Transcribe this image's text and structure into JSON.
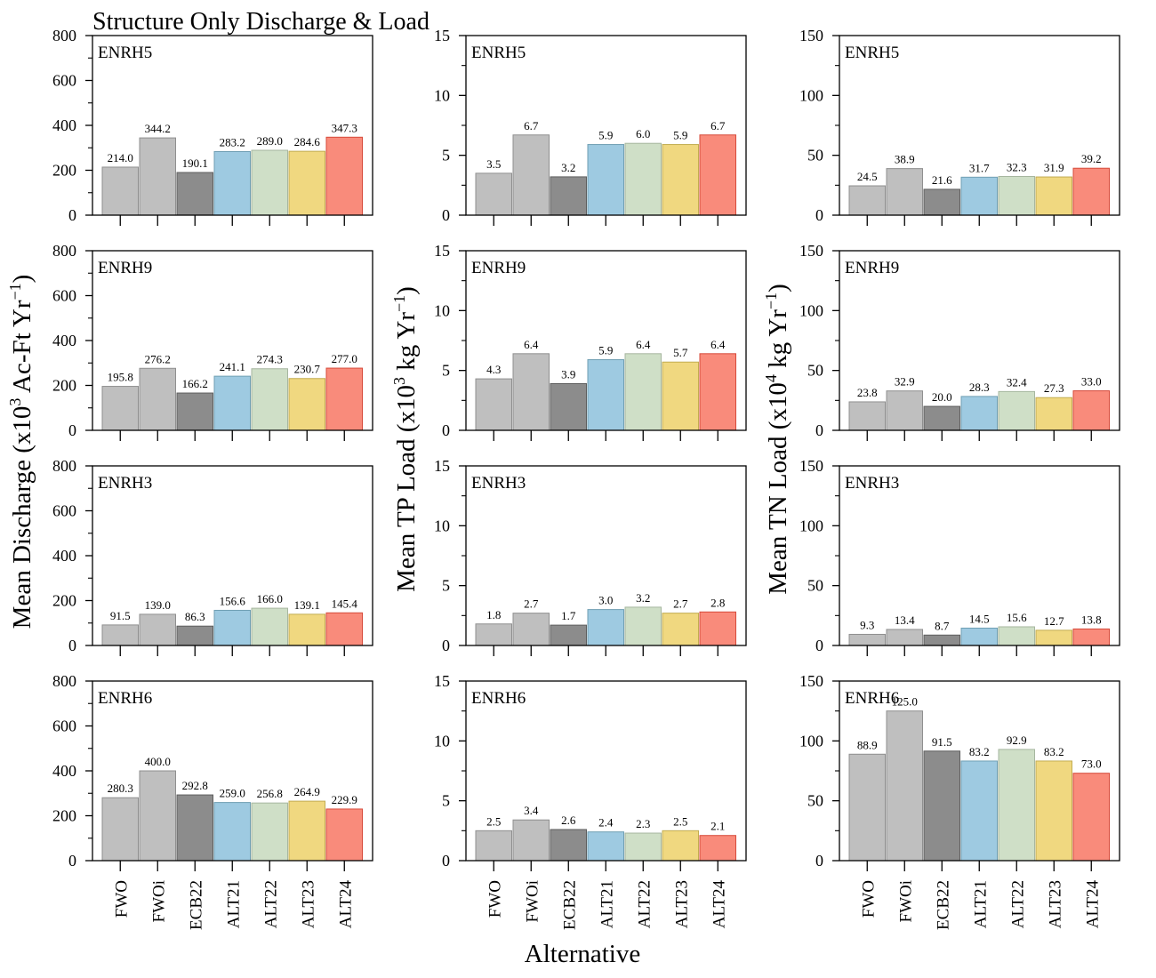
{
  "title": "Structure Only Discharge & Load",
  "xlabel": "Alternative",
  "categories": [
    "FWO",
    "FWOi",
    "ECB22",
    "ALT21",
    "ALT22",
    "ALT23",
    "ALT24"
  ],
  "colors": [
    "#bfbfbf",
    "#bfbfbf",
    "#8c8c8c",
    "#9ecae1",
    "#cfdfc7",
    "#f0d880",
    "#f98b7b"
  ],
  "strokes": [
    "#8f8f8f",
    "#8f8f8f",
    "#5e5e5e",
    "#6f9fb3",
    "#a6b69f",
    "#c2ac50",
    "#d64a3a"
  ],
  "columns": [
    {
      "ylabel_main": "Mean Discharge (x10",
      "ylabel_sup": "3",
      "ylabel_rest": " Ac-Ft Yr",
      "ylabel_sup2": "−1",
      "ylabel_close": ")",
      "ylim": [
        0,
        800
      ],
      "ticks": [
        0,
        200,
        400,
        600,
        800
      ],
      "minor": [
        100,
        300,
        500,
        700
      ]
    },
    {
      "ylabel_main": "Mean TP Load (x10",
      "ylabel_sup": "3",
      "ylabel_rest": " kg Yr",
      "ylabel_sup2": "−1",
      "ylabel_close": ")",
      "ylim": [
        0,
        15
      ],
      "ticks": [
        0,
        5,
        10,
        15
      ],
      "minor": [
        2.5,
        7.5,
        12.5
      ]
    },
    {
      "ylabel_main": "Mean TN Load (x10",
      "ylabel_sup": "4",
      "ylabel_rest": " kg Yr",
      "ylabel_sup2": "−1",
      "ylabel_close": ")",
      "ylim": [
        0,
        150
      ],
      "ticks": [
        0,
        50,
        100,
        150
      ],
      "minor": [
        25,
        75,
        125
      ]
    }
  ],
  "chart_data": [
    {
      "type": "bar",
      "site": "ENRH5",
      "metric": "Mean Discharge",
      "values": [
        214.0,
        344.2,
        190.1,
        283.2,
        289.0,
        284.6,
        347.3
      ],
      "labels": [
        "214.0",
        "344.2",
        "190.1",
        "283.2",
        "289.0",
        "284.6",
        "347.3"
      ]
    },
    {
      "type": "bar",
      "site": "ENRH5",
      "metric": "Mean TP Load",
      "values": [
        3.5,
        6.7,
        3.2,
        5.9,
        6.0,
        5.9,
        6.7
      ],
      "labels": [
        "3.5",
        "6.7",
        "3.2",
        "5.9",
        "6.0",
        "5.9",
        "6.7"
      ]
    },
    {
      "type": "bar",
      "site": "ENRH5",
      "metric": "Mean TN Load",
      "values": [
        24.5,
        38.9,
        21.6,
        31.7,
        32.3,
        31.9,
        39.2
      ],
      "labels": [
        "24.5",
        "38.9",
        "21.6",
        "31.7",
        "32.3",
        "31.9",
        "39.2"
      ]
    },
    {
      "type": "bar",
      "site": "ENRH9",
      "metric": "Mean Discharge",
      "values": [
        195.8,
        276.2,
        166.2,
        241.1,
        274.3,
        230.7,
        277.0
      ],
      "labels": [
        "195.8",
        "276.2",
        "166.2",
        "241.1",
        "274.3",
        "230.7",
        "277.0"
      ]
    },
    {
      "type": "bar",
      "site": "ENRH9",
      "metric": "Mean TP Load",
      "values": [
        4.3,
        6.4,
        3.9,
        5.9,
        6.4,
        5.7,
        6.4
      ],
      "labels": [
        "4.3",
        "6.4",
        "3.9",
        "5.9",
        "6.4",
        "5.7",
        "6.4"
      ]
    },
    {
      "type": "bar",
      "site": "ENRH9",
      "metric": "Mean TN Load",
      "values": [
        23.8,
        32.9,
        20.0,
        28.3,
        32.4,
        27.3,
        33.0
      ],
      "labels": [
        "23.8",
        "32.9",
        "20.0",
        "28.3",
        "32.4",
        "27.3",
        "33.0"
      ]
    },
    {
      "type": "bar",
      "site": "ENRH3",
      "metric": "Mean Discharge",
      "values": [
        91.5,
        139.0,
        86.3,
        156.6,
        166.0,
        139.1,
        145.4
      ],
      "labels": [
        "91.5",
        "139.0",
        "86.3",
        "156.6",
        "166.0",
        "139.1",
        "145.4"
      ]
    },
    {
      "type": "bar",
      "site": "ENRH3",
      "metric": "Mean TP Load",
      "values": [
        1.8,
        2.7,
        1.7,
        3.0,
        3.2,
        2.7,
        2.8
      ],
      "labels": [
        "1.8",
        "2.7",
        "1.7",
        "3.0",
        "3.2",
        "2.7",
        "2.8"
      ]
    },
    {
      "type": "bar",
      "site": "ENRH3",
      "metric": "Mean TN Load",
      "values": [
        9.3,
        13.4,
        8.7,
        14.5,
        15.6,
        12.7,
        13.8
      ],
      "labels": [
        "9.3",
        "13.4",
        "8.7",
        "14.5",
        "15.6",
        "12.7",
        "13.8"
      ]
    },
    {
      "type": "bar",
      "site": "ENRH6",
      "metric": "Mean Discharge",
      "values": [
        280.3,
        400.0,
        292.8,
        259.0,
        256.8,
        264.9,
        229.9
      ],
      "labels": [
        "280.3",
        "400.0",
        "292.8",
        "259.0",
        "256.8",
        "264.9",
        "229.9"
      ]
    },
    {
      "type": "bar",
      "site": "ENRH6",
      "metric": "Mean TP Load",
      "values": [
        2.5,
        3.4,
        2.6,
        2.4,
        2.3,
        2.5,
        2.1
      ],
      "labels": [
        "2.5",
        "3.4",
        "2.6",
        "2.4",
        "2.3",
        "2.5",
        "2.1"
      ]
    },
    {
      "type": "bar",
      "site": "ENRH6",
      "metric": "Mean TN Load",
      "values": [
        88.9,
        125.0,
        91.5,
        83.2,
        92.9,
        83.2,
        73.0
      ],
      "labels": [
        "88.9",
        "125.0",
        "91.5",
        "83.2",
        "92.9",
        "83.2",
        "73.0"
      ]
    }
  ]
}
